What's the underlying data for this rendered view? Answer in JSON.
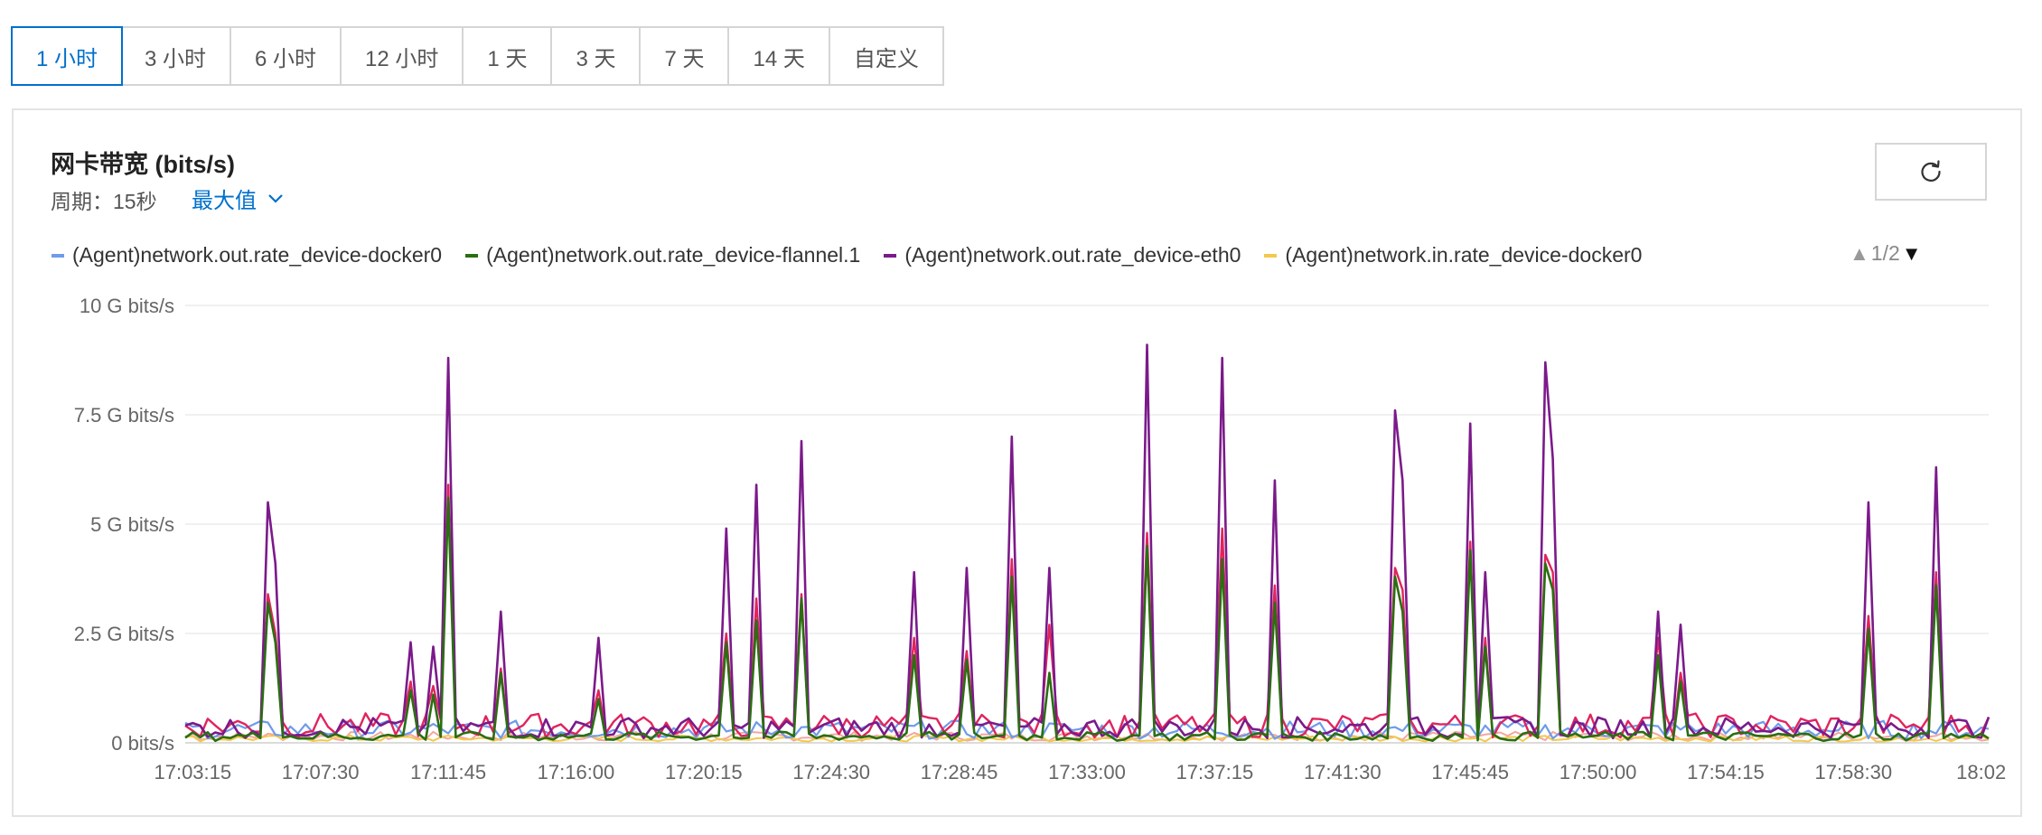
{
  "time_ranges": [
    "1 小时",
    "3 小时",
    "6 小时",
    "12 小时",
    "1 天",
    "3 天",
    "7 天",
    "14 天",
    "自定义"
  ],
  "active_range_index": 0,
  "panel": {
    "title": "网卡带宽 (bits/s)",
    "period": "周期：15秒",
    "aggregation": "最大值"
  },
  "legend_pager": {
    "page": "1/2"
  },
  "colors": {
    "accent": "#0070cc",
    "docker0_out": "#6e9bea",
    "flannel_out": "#2a6e12",
    "eth0_out": "#7b1a8a",
    "docker0_in": "#f2c94c",
    "red_series": "#e0245e",
    "salmon_series": "#f4a6a0"
  },
  "chart_data": {
    "type": "line",
    "ylabel": "",
    "yticks": [
      "10 G bits/s",
      "7.5 G bits/s",
      "5 G bits/s",
      "2.5 G bits/s",
      "0  bits/s"
    ],
    "ylim": [
      0,
      10
    ],
    "y_unit": "G bits/s",
    "x_tick_labels": [
      "17:03:15",
      "17:07:30",
      "17:11:45",
      "17:16:00",
      "17:20:15",
      "17:24:30",
      "17:28:45",
      "17:33:00",
      "17:37:15",
      "17:41:30",
      "17:45:45",
      "17:50:00",
      "17:54:15",
      "17:58:30",
      "18:02"
    ],
    "grid": true,
    "legend_position": "top",
    "x_start": "17:03:00",
    "x_end": "18:03:00",
    "spikes": [
      {
        "t": "17:05:45",
        "eth0": 5.5,
        "flannel": 3.2,
        "red": 3.4
      },
      {
        "t": "17:06:00",
        "eth0": 4.1,
        "flannel": 2.3,
        "red": 2.5
      },
      {
        "t": "17:10:30",
        "eth0": 2.3,
        "flannel": 1.2,
        "red": 1.4
      },
      {
        "t": "17:11:15",
        "eth0": 2.2,
        "flannel": 1.1,
        "red": 1.3
      },
      {
        "t": "17:11:45",
        "eth0": 8.8,
        "flannel": 5.6,
        "red": 5.9
      },
      {
        "t": "17:13:30",
        "eth0": 3.0,
        "flannel": 1.6,
        "red": 1.7
      },
      {
        "t": "17:16:45",
        "eth0": 2.4,
        "flannel": 1.0,
        "red": 1.2
      },
      {
        "t": "17:21:00",
        "eth0": 4.9,
        "flannel": 2.3,
        "red": 2.5
      },
      {
        "t": "17:22:00",
        "eth0": 5.9,
        "flannel": 2.8,
        "red": 3.3
      },
      {
        "t": "17:23:30",
        "eth0": 6.9,
        "flannel": 3.3,
        "red": 3.4
      },
      {
        "t": "17:27:15",
        "eth0": 3.9,
        "flannel": 2.0,
        "red": 2.4
      },
      {
        "t": "17:29:00",
        "eth0": 4.0,
        "flannel": 1.9,
        "red": 2.1
      },
      {
        "t": "17:30:30",
        "eth0": 7.0,
        "flannel": 3.8,
        "red": 4.2
      },
      {
        "t": "17:31:45",
        "eth0": 4.0,
        "flannel": 1.6,
        "red": 2.7
      },
      {
        "t": "17:35:00",
        "eth0": 9.1,
        "flannel": 4.5,
        "red": 4.8
      },
      {
        "t": "17:37:30",
        "eth0": 8.8,
        "flannel": 4.2,
        "red": 4.9
      },
      {
        "t": "17:39:15",
        "eth0": 6.0,
        "flannel": 3.2,
        "red": 3.6
      },
      {
        "t": "17:43:15",
        "eth0": 7.6,
        "flannel": 3.8,
        "red": 4.0
      },
      {
        "t": "17:43:30",
        "eth0": 6.0,
        "flannel": 3.0,
        "red": 3.5
      },
      {
        "t": "17:45:45",
        "eth0": 7.3,
        "flannel": 4.4,
        "red": 4.6
      },
      {
        "t": "17:46:15",
        "eth0": 3.9,
        "flannel": 2.2,
        "red": 2.4
      },
      {
        "t": "17:48:15",
        "eth0": 8.7,
        "flannel": 4.1,
        "red": 4.3
      },
      {
        "t": "17:48:30",
        "eth0": 6.5,
        "flannel": 3.5,
        "red": 3.9
      },
      {
        "t": "17:52:00",
        "eth0": 3.0,
        "flannel": 2.0,
        "red": 2.4
      },
      {
        "t": "17:52:45",
        "eth0": 2.7,
        "flannel": 1.4,
        "red": 1.6
      },
      {
        "t": "17:59:00",
        "eth0": 5.5,
        "flannel": 2.6,
        "red": 2.9
      },
      {
        "t": "18:01:15",
        "eth0": 6.3,
        "flannel": 3.6,
        "red": 3.9
      }
    ],
    "series": [
      {
        "name": "(Agent)network.out.rate_device-docker0",
        "color_key": "docker0_out",
        "baseline": 0.3
      },
      {
        "name": "(Agent)network.out.rate_device-flannel.1",
        "color_key": "flannel_out",
        "baseline": 0.15
      },
      {
        "name": "(Agent)network.out.rate_device-eth0",
        "color_key": "eth0_out",
        "baseline": 0.35
      },
      {
        "name": "(Agent)network.in.rate_device-docker0",
        "color_key": "docker0_in",
        "baseline": 0.1
      }
    ],
    "unlabeled_series": [
      {
        "color_key": "red_series",
        "baseline": 0.4
      },
      {
        "color_key": "salmon_series",
        "baseline": 0.15
      }
    ]
  }
}
